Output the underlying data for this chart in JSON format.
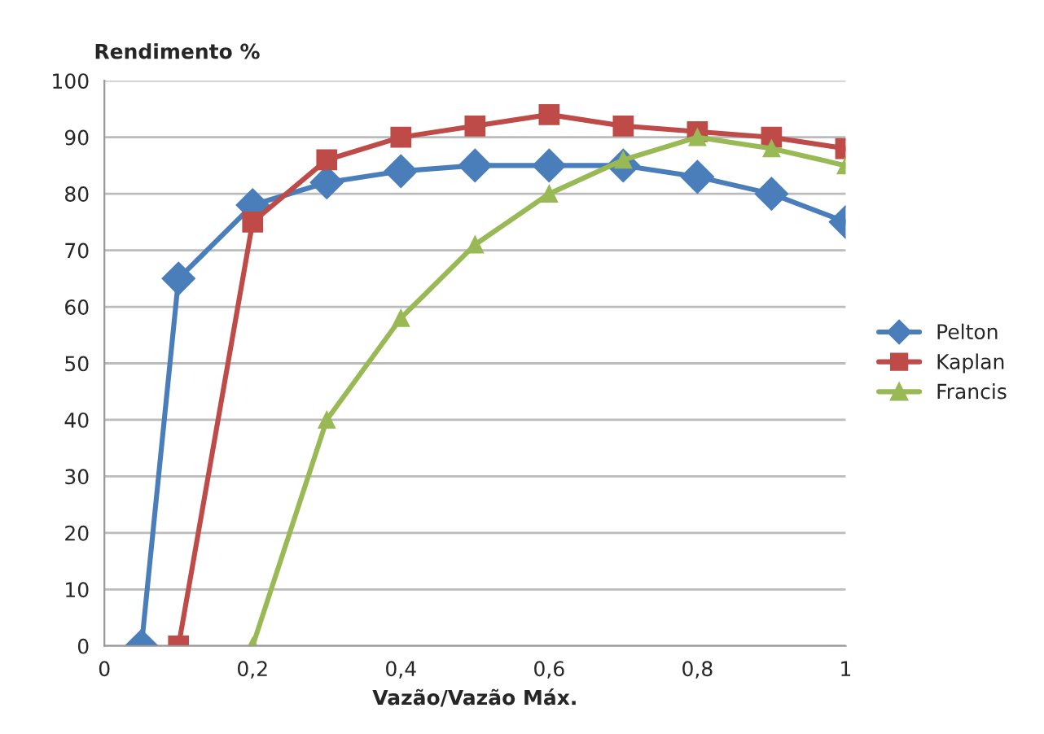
{
  "chart_data": {
    "type": "line",
    "ylabel": "Rendimento %",
    "xlabel": "Vazão/Vazão Máx.",
    "xlim": [
      0,
      1
    ],
    "ylim": [
      0,
      100
    ],
    "xticks": [
      0,
      {
        "value": 0.2,
        "label": "0,2"
      },
      {
        "value": 0.4,
        "label": "0,4"
      },
      {
        "value": 0.6,
        "label": "0,6"
      },
      {
        "value": 0.8,
        "label": "0,8"
      },
      1
    ],
    "yticks": [
      0,
      10,
      20,
      30,
      40,
      50,
      60,
      70,
      80,
      90,
      100
    ],
    "grid": "y",
    "legend": "right",
    "line_style": "solid",
    "series": [
      {
        "name": "Pelton",
        "color": "#4a7ebb",
        "marker": "diamond",
        "x": [
          0.05,
          0.1,
          0.2,
          0.3,
          0.4,
          0.5,
          0.6,
          0.7,
          0.8,
          0.9,
          1.0
        ],
        "values": [
          0,
          65,
          78,
          82,
          84,
          85,
          85,
          85,
          83,
          80,
          75
        ]
      },
      {
        "name": "Kaplan",
        "color": "#be4b48",
        "marker": "square",
        "x": [
          0.1,
          0.2,
          0.3,
          0.4,
          0.5,
          0.6,
          0.7,
          0.8,
          0.9,
          1.0
        ],
        "values": [
          0,
          75,
          86,
          90,
          92,
          94,
          92,
          91,
          90,
          88
        ]
      },
      {
        "name": "Francis",
        "color": "#98b954",
        "marker": "triangle",
        "x": [
          0.2,
          0.3,
          0.4,
          0.5,
          0.6,
          0.7,
          0.8,
          0.9,
          1.0
        ],
        "values": [
          0,
          40,
          58,
          71,
          80,
          86,
          90,
          88,
          85
        ]
      }
    ]
  }
}
